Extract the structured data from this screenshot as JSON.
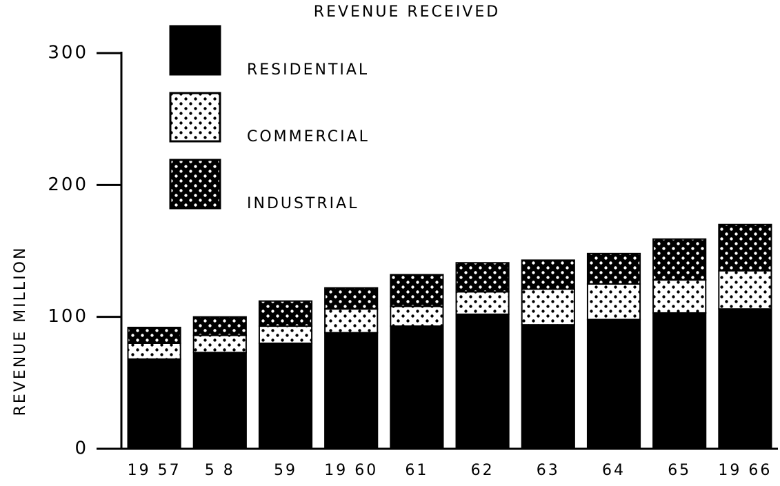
{
  "chart_data": {
    "type": "stacked_bar",
    "title": "REVENUE RECEIVED",
    "y_label": "REVENUE   MILLION",
    "categories": [
      "19 57",
      "5 8",
      "59",
      "19 60",
      "61",
      "62",
      "63",
      "64",
      "65",
      "19 66"
    ],
    "series": [
      {
        "name": "RESIDENTIAL",
        "color": "#000000",
        "pattern": "solid",
        "values": [
          68,
          73,
          80,
          88,
          93,
          102,
          94,
          98,
          103,
          106
        ]
      },
      {
        "name": "COMMERCIAL",
        "color": "#ffffff",
        "pattern": "dots",
        "values": [
          12,
          13,
          13,
          18,
          15,
          17,
          27,
          27,
          25,
          29
        ]
      },
      {
        "name": "INDUSTRIAL",
        "color": "#000000",
        "pattern": "dots",
        "values": [
          12,
          14,
          19,
          16,
          24,
          22,
          22,
          23,
          31,
          35
        ]
      }
    ],
    "ylim": [
      0,
      300
    ],
    "yticks": [
      0,
      100,
      200,
      300
    ],
    "grid": false,
    "legend": "upper left"
  }
}
